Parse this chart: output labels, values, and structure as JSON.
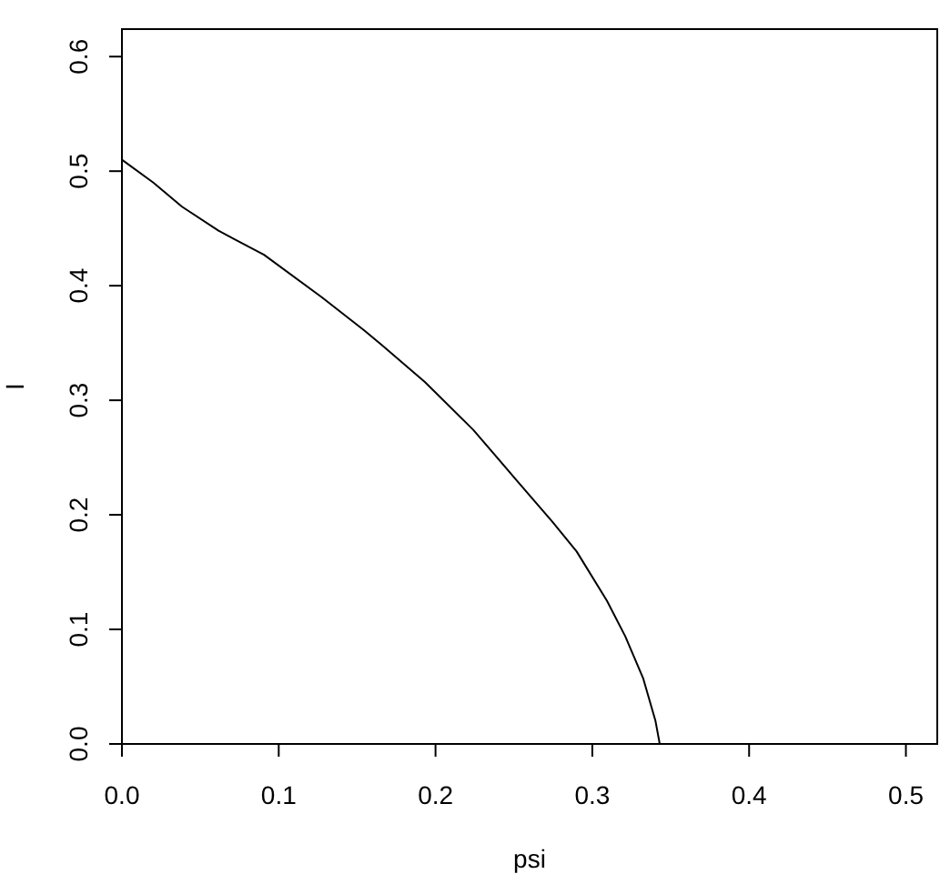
{
  "chart_data": {
    "type": "line",
    "xlabel": "psi",
    "ylabel": "I",
    "x": [
      0,
      0.02,
      0.0383,
      0.0616,
      0.0906,
      0.1274,
      0.1545,
      0.166,
      0.1932,
      0.2242,
      0.2512,
      0.2745,
      0.29,
      0.3093,
      0.321,
      0.3325,
      0.3403,
      0.343,
      0.5
    ],
    "series": [
      {
        "color": "#000000",
        "values": [
          0.51,
          0.49,
          0.469,
          0.448,
          0.427,
          0.39,
          0.361,
          0.348,
          0.316,
          0.274,
          0.231,
          0.194,
          0.168,
          0.125,
          0.094,
          0.057,
          0.02,
          0,
          0
        ]
      }
    ],
    "xlim": [
      0,
      0.52
    ],
    "ylim": [
      0,
      0.624
    ],
    "xticks": [
      {
        "value": 0,
        "label": "0.0"
      },
      0.1,
      0.2,
      0.3,
      0.4,
      0.5
    ],
    "yticks": [
      {
        "value": 0,
        "label": "0.0"
      },
      0.1,
      0.2,
      0.3,
      0.4,
      0.5,
      0.6
    ]
  }
}
